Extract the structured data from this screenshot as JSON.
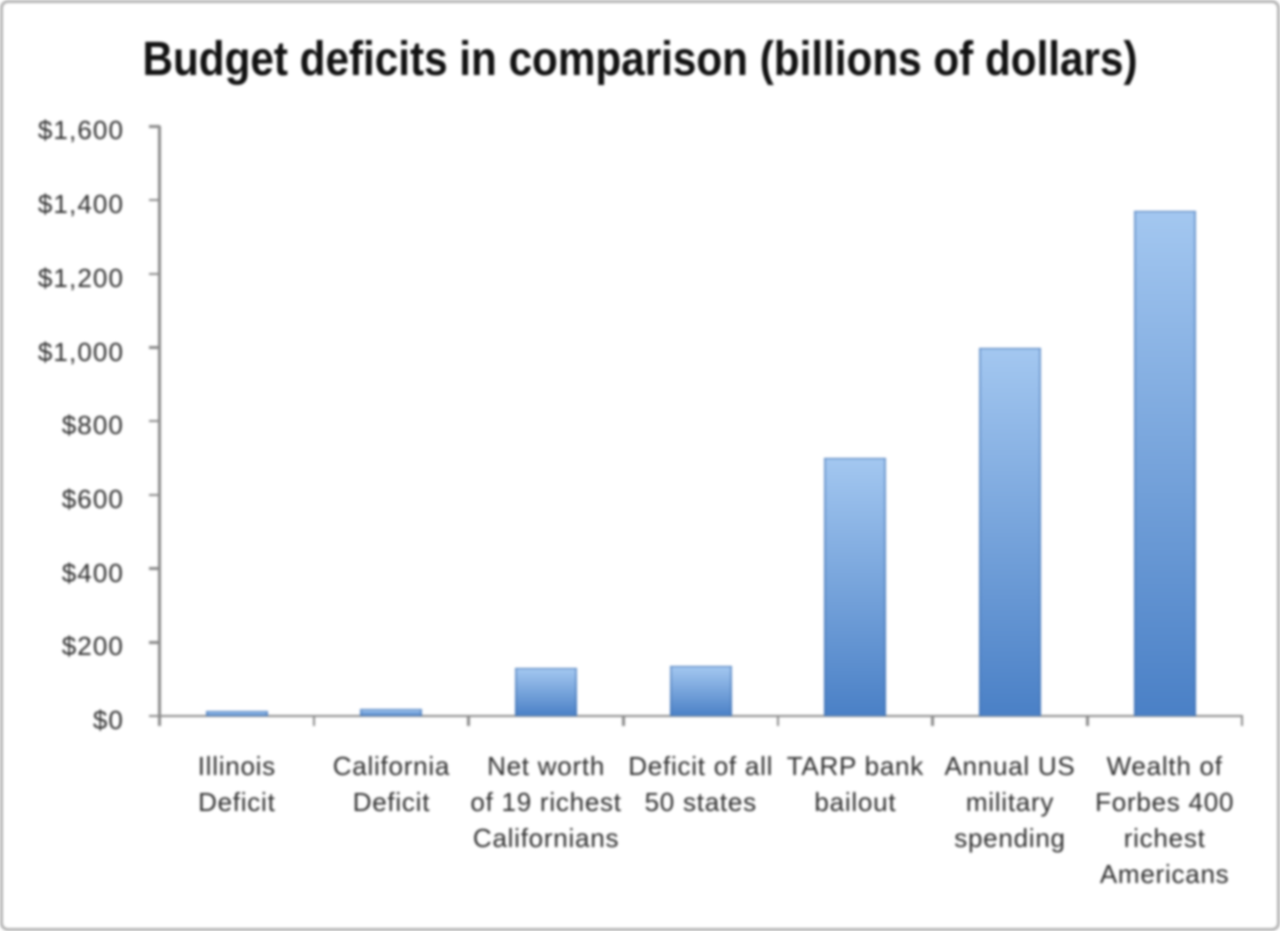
{
  "chart_data": {
    "type": "bar",
    "title": "Budget deficits in comparison (billions of dollars)",
    "categories": [
      "Illinois Deficit",
      "California Deficit",
      "Net worth of 19 richest Californians",
      "Deficit of all 50 states",
      "TARP bank bailout",
      "Annual US military spending",
      "Wealth of Forbes 400 richest Americans"
    ],
    "values": [
      13,
      19,
      130,
      135,
      700,
      1000,
      1370
    ],
    "category_label_lines": [
      [
        "Illinois",
        "Deficit"
      ],
      [
        "California",
        "Deficit"
      ],
      [
        "Net worth",
        "of 19 richest",
        "Californians"
      ],
      [
        "Deficit of all",
        "50 states"
      ],
      [
        "TARP bank",
        "bailout"
      ],
      [
        "Annual US",
        "military",
        "spending"
      ],
      [
        "Wealth of",
        "Forbes 400",
        "richest",
        "Americans"
      ]
    ],
    "xlabel": "",
    "ylabel": "",
    "ylim": [
      0,
      1600
    ],
    "y_tick_step": 200,
    "y_tick_labels": [
      "$1,600",
      "$1,400",
      "$1,200",
      "$1,000",
      "$800",
      "$600",
      "$400",
      "$200",
      "$0"
    ],
    "grid": false,
    "legend": false,
    "bar_color_top": "#a3c7f0",
    "bar_color_bottom": "#4a80c6",
    "bar_edge_color": "#4a7ec0",
    "axis_color": "#8a8a8a",
    "text_color": "#2d2d2d",
    "title_color": "#111111",
    "background_color": "#ffffff",
    "frame_color": "#b4b4b4"
  }
}
